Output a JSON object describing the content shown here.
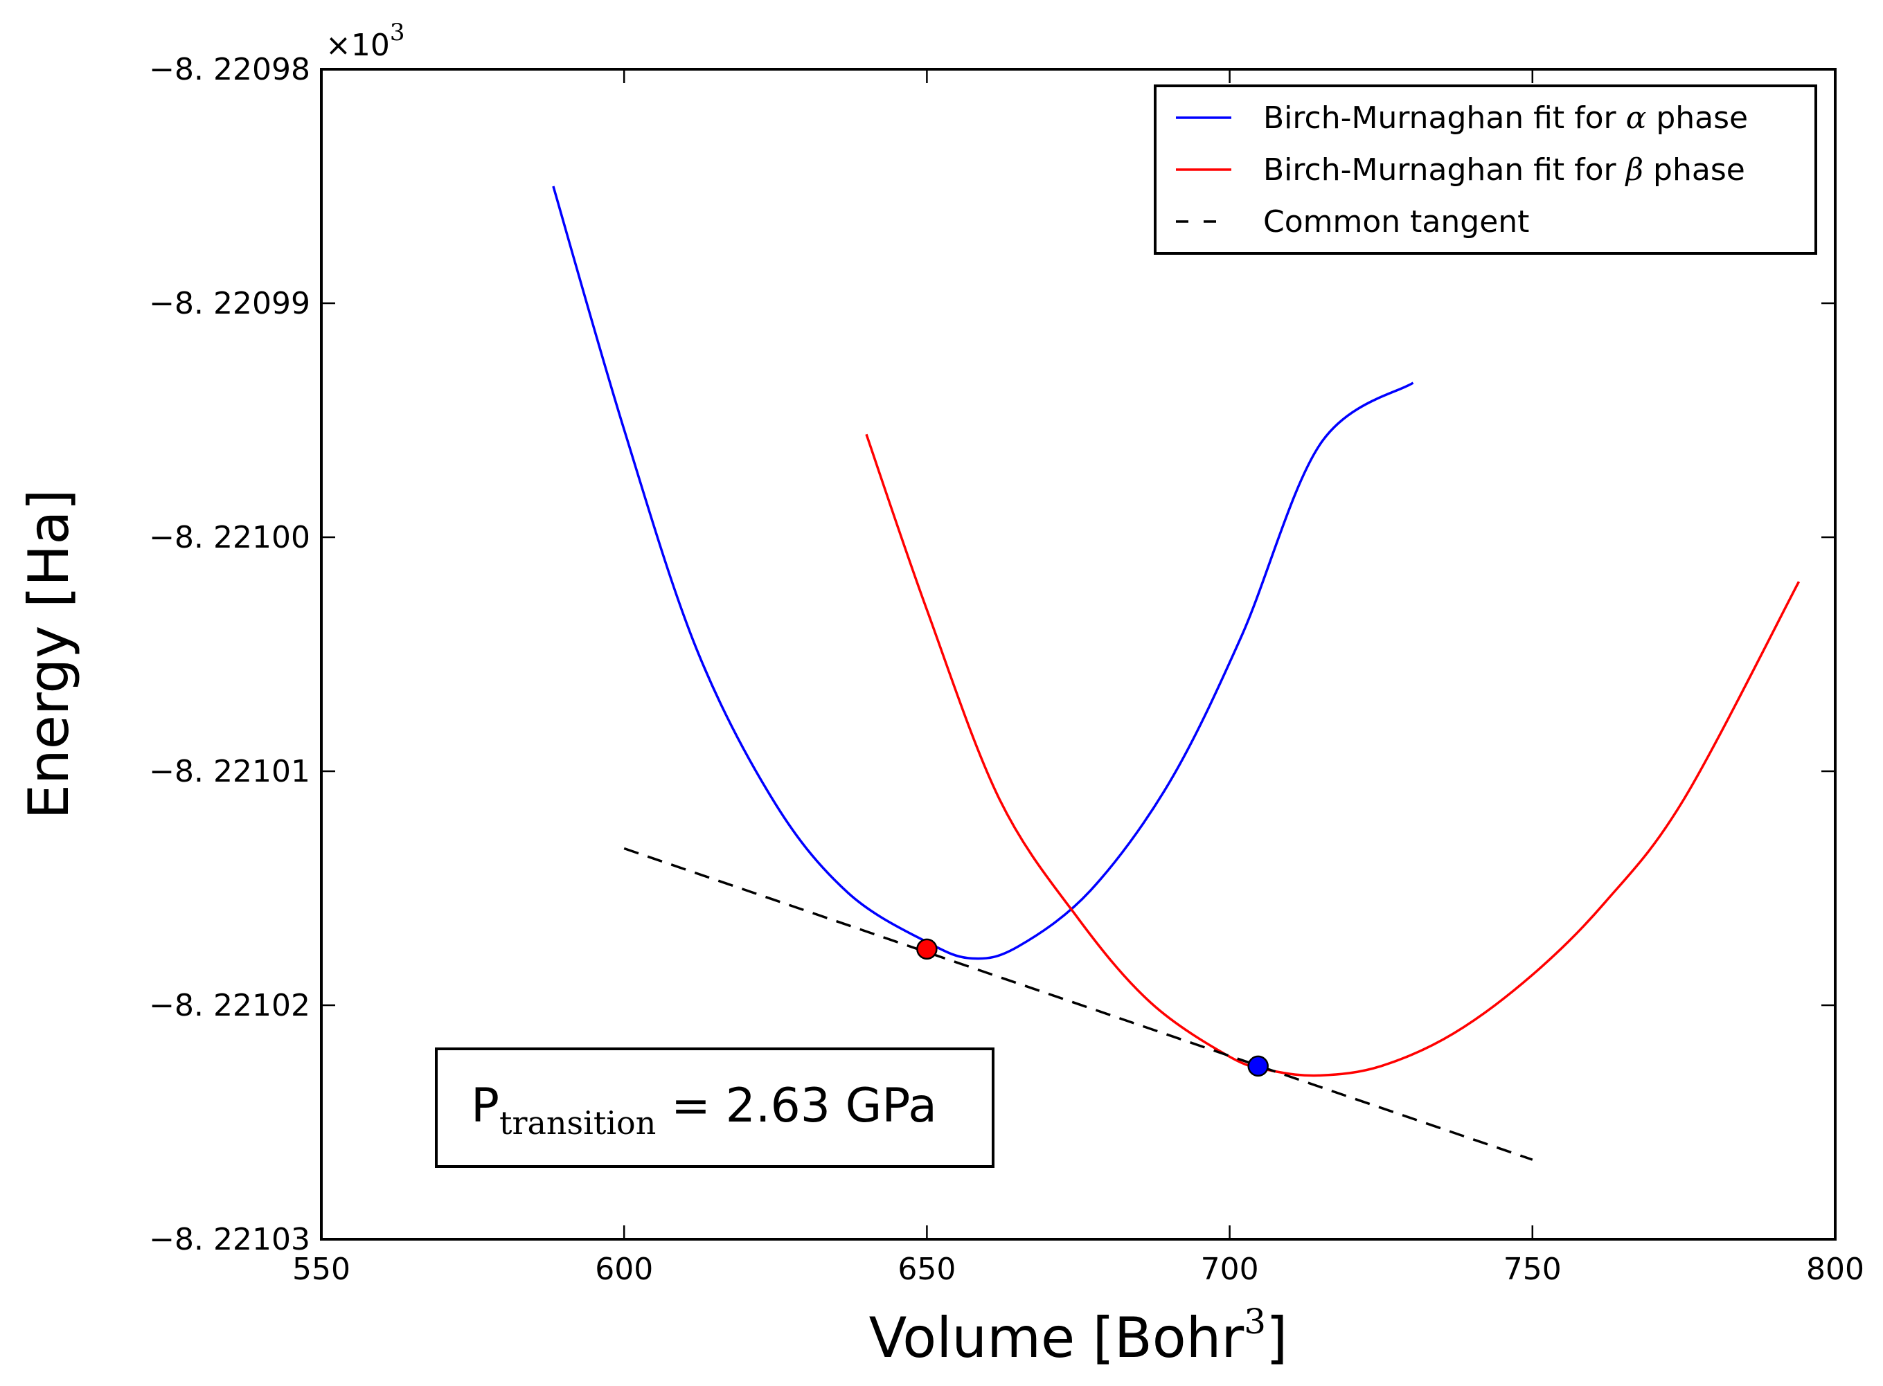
{
  "chart_data": {
    "type": "line",
    "xlabel_main": "Volume [Bohr",
    "xlabel_sup": "3",
    "xlabel_end": "]",
    "ylabel": "Energy [Ha]",
    "offset_base": "×10",
    "offset_exp": "3",
    "xlim": [
      550,
      800
    ],
    "ylim": [
      -8.22103,
      -8.22098
    ],
    "xticks": [
      550,
      600,
      650,
      700,
      750,
      800
    ],
    "xtick_labels": [
      "550",
      "600",
      "650",
      "700",
      "750",
      "800"
    ],
    "yticks": [
      -8.22098,
      -8.22099,
      -8.221,
      -8.22101,
      -8.22102,
      -8.22103
    ],
    "ytick_labels": [
      "−8. 22098",
      "−8. 22099",
      "−8. 22100",
      "−8. 22101",
      "−8. 22102",
      "−8. 22103"
    ],
    "legend_position": "top-right",
    "legend": [
      {
        "label_pre": "Birch-Murnaghan fit for ",
        "greek": "α",
        "label_post": " phase",
        "color": "#0000ff",
        "style": "solid"
      },
      {
        "label_pre": "Birch-Murnaghan fit for ",
        "greek": "β",
        "label_post": " phase",
        "color": "#ff0000",
        "style": "solid"
      },
      {
        "label_pre": "Common tangent",
        "greek": "",
        "label_post": "",
        "color": "#000000",
        "style": "dashed"
      }
    ],
    "series": [
      {
        "color": "#0000ff",
        "x": [
          588.3,
          600,
          612,
          625,
          637,
          650,
          657.5,
          665,
          677,
          690,
          702,
          715,
          730.3
        ],
        "y": [
          -8.220985,
          -8.2209954,
          -8.2210048,
          -8.2210114,
          -8.2210152,
          -8.2210173,
          -8.221018,
          -8.2210175,
          -8.2210151,
          -8.2210105,
          -8.2210042,
          -8.220996,
          -8.2209934
        ]
      },
      {
        "color": "#ff0000",
        "x": [
          640,
          650,
          662,
          675,
          687,
          700,
          707,
          715,
          725,
          737,
          750,
          762,
          775,
          794
        ],
        "y": [
          -8.2209956,
          -8.2210031,
          -8.2210112,
          -8.2210163,
          -8.2210199,
          -8.2210222,
          -8.2210228,
          -8.221023,
          -8.2210226,
          -8.2210212,
          -8.2210187,
          -8.2210156,
          -8.2210112,
          -8.2210019
        ]
      },
      {
        "color": "#000000",
        "dashed": true,
        "x": [
          600,
          750
        ],
        "y": [
          -8.2210133,
          -8.2210266
        ]
      }
    ],
    "points": [
      {
        "x": 650,
        "y": -8.2210176,
        "color": "#ff0000"
      },
      {
        "x": 704.7,
        "y": -8.2210226,
        "color": "#0000ff"
      }
    ],
    "annotation_main": "P",
    "annotation_sub": "transition",
    "annotation_value": " = 2.63 GPa"
  }
}
